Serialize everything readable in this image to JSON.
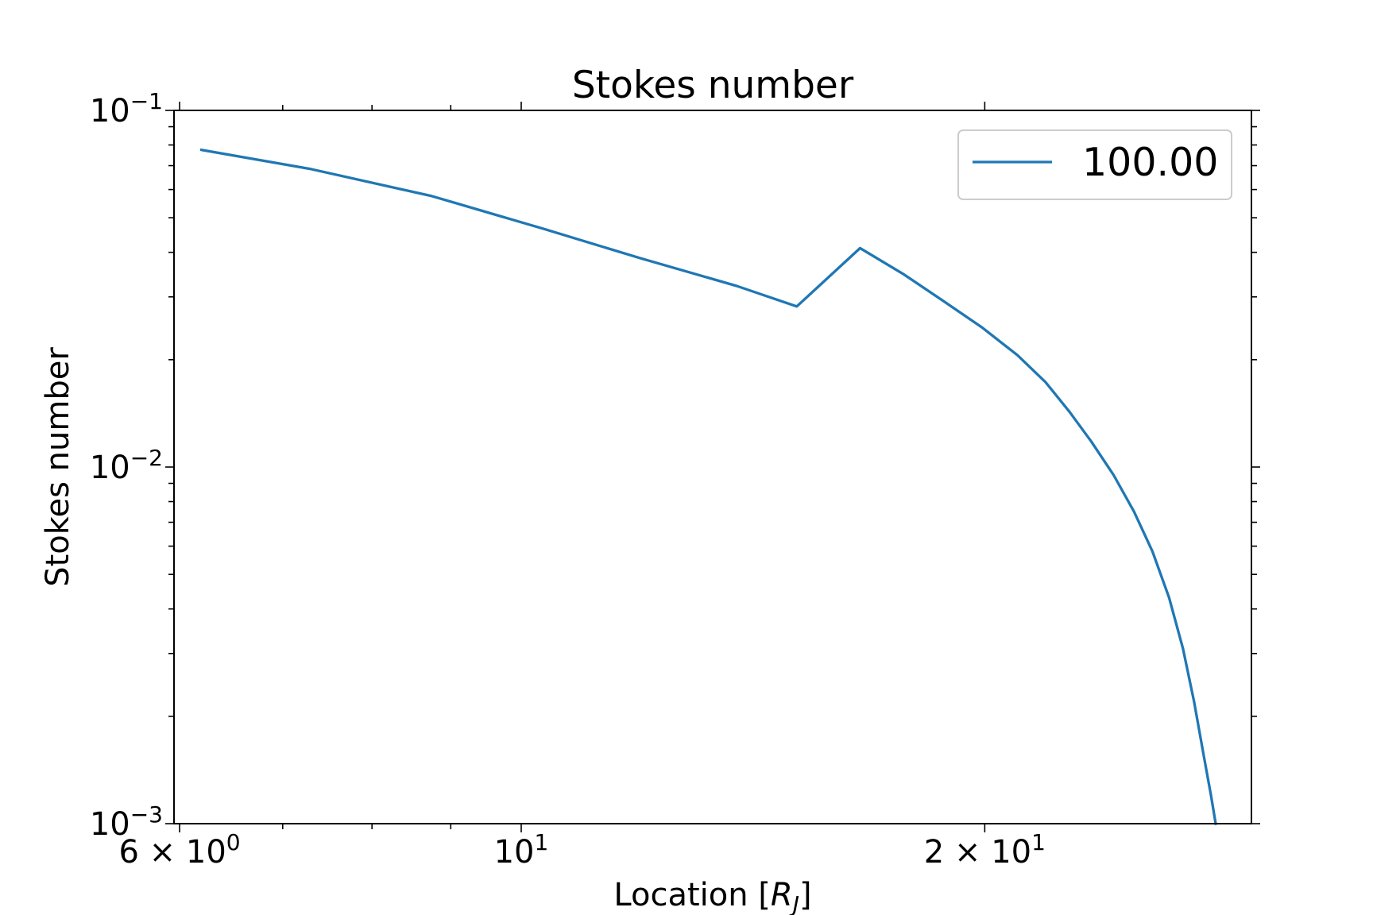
{
  "chart_data": {
    "type": "line",
    "title": "Stokes number",
    "xlabel": "Location [R_J]",
    "ylabel": "Stokes number",
    "xscale": "log",
    "yscale": "log",
    "xlim": [
      5.95,
      29.8
    ],
    "ylim": [
      0.001,
      0.1
    ],
    "x_ticks": [
      {
        "value": 6,
        "label": "6 × 10^0"
      },
      {
        "value": 10,
        "label": "10^1"
      },
      {
        "value": 20,
        "label": "2 × 10^1"
      }
    ],
    "y_ticks": [
      {
        "value": 0.1,
        "label": "10^-1"
      },
      {
        "value": 0.01,
        "label": "10^-2"
      },
      {
        "value": 0.001,
        "label": "10^-3"
      }
    ],
    "grid": false,
    "legend": {
      "position": "top-right"
    },
    "color": "#1f77b4",
    "series": [
      {
        "name": "100.00",
        "x": [
          6.2,
          7.3,
          8.75,
          10.35,
          11.95,
          13.8,
          15.1,
          16.6,
          17.7,
          18.8,
          19.9,
          21.0,
          21.9,
          22.7,
          23.45,
          24.25,
          25.0,
          25.7,
          26.35,
          26.9,
          27.35,
          27.75,
          28.05,
          28.25
        ],
        "y": [
          0.0775,
          0.0685,
          0.0575,
          0.0465,
          0.0385,
          0.0322,
          0.0282,
          0.0411,
          0.0348,
          0.0292,
          0.0247,
          0.0206,
          0.0173,
          0.0143,
          0.0118,
          0.0095,
          0.0075,
          0.0058,
          0.0043,
          0.0031,
          0.0022,
          0.00155,
          0.0012,
          0.001
        ]
      }
    ]
  }
}
